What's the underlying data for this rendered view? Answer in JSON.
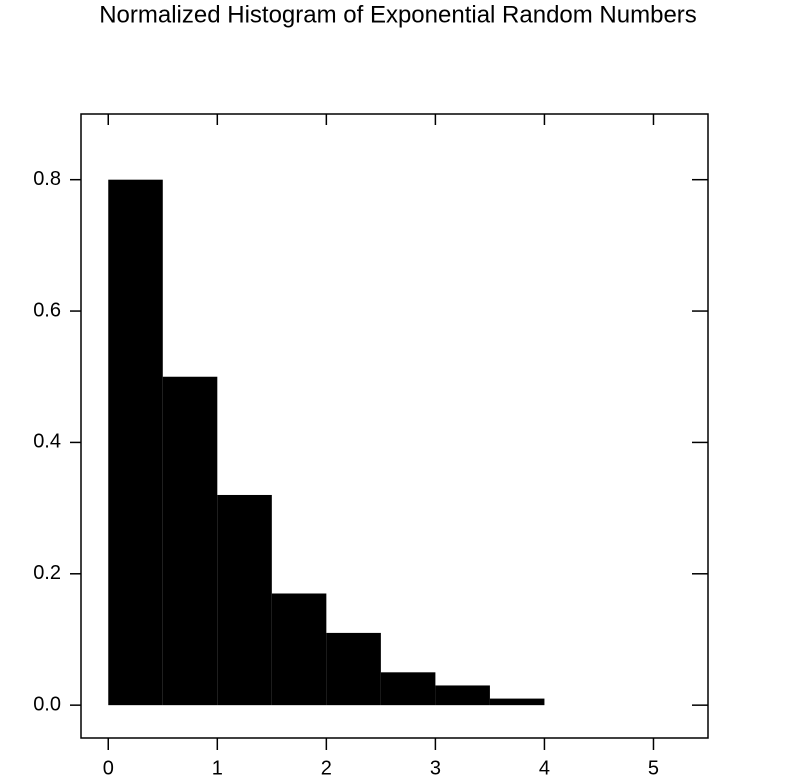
{
  "chart_data": {
    "type": "histogram",
    "title": "Normalized Histogram of Exponential Random Numbers",
    "bins": [
      0,
      0.5,
      1,
      1.5,
      2,
      2.5,
      3,
      3.5,
      4
    ],
    "values": [
      0.8,
      0.5,
      0.32,
      0.17,
      0.11,
      0.05,
      0.03,
      0.01
    ],
    "color": "#000000",
    "xlim": [
      -0.25,
      5.5
    ],
    "xticks": [
      0,
      1,
      2,
      3,
      4,
      5
    ],
    "ylim": [
      -0.05,
      0.9
    ],
    "yticks": [
      {
        "value": 0,
        "label": "0.0"
      },
      0.2,
      0.4,
      0.6,
      0.8
    ]
  }
}
